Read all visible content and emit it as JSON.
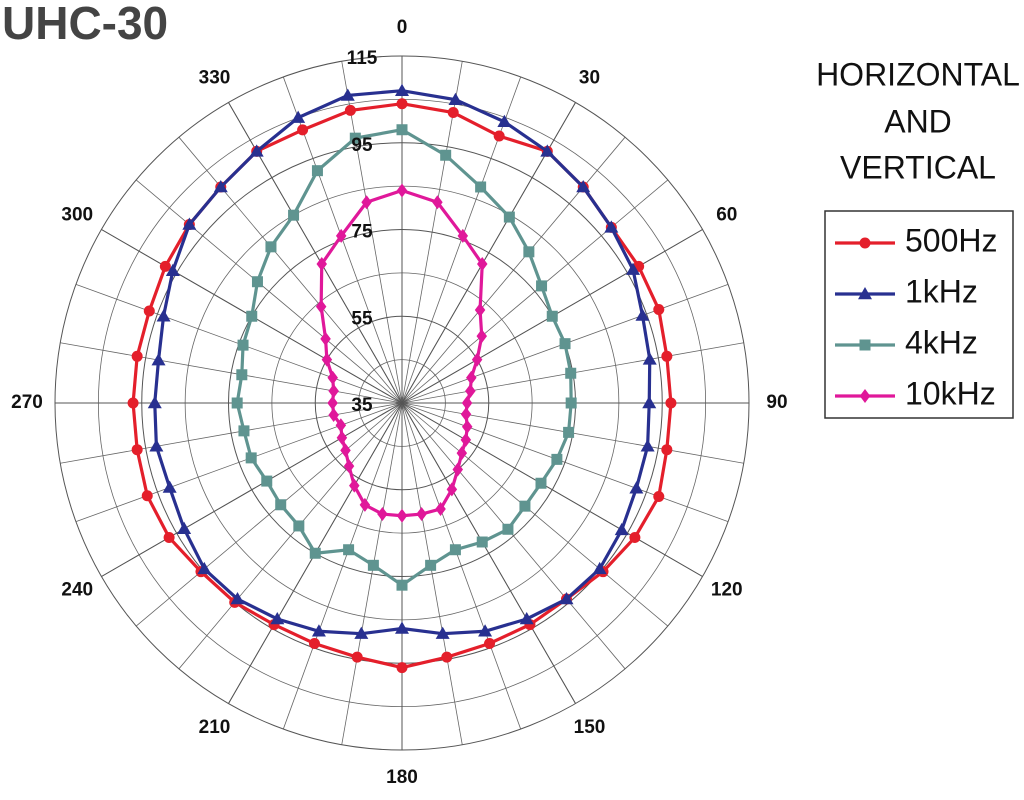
{
  "chart_data": {
    "type": "polar",
    "title": "UHC-30",
    "annotation": [
      "HORIZONTAL",
      "AND",
      "VERTICAL"
    ],
    "theta": [
      0,
      10,
      20,
      30,
      40,
      50,
      60,
      70,
      80,
      90,
      100,
      110,
      120,
      130,
      140,
      150,
      160,
      170,
      180,
      190,
      200,
      210,
      220,
      230,
      240,
      250,
      260,
      270,
      280,
      290,
      300,
      310,
      320,
      330,
      340,
      350
    ],
    "thetaticks": [
      0,
      30,
      60,
      90,
      120,
      150,
      180,
      210,
      240,
      270,
      300,
      330
    ],
    "rlim": [
      35,
      115
    ],
    "rticks": [
      35,
      55,
      75,
      95,
      115
    ],
    "grid": true,
    "legend": "right",
    "series": [
      {
        "name": "500Hz",
        "color": "#e41f2b",
        "marker": "circle",
        "values": [
          104,
          103,
          100.5,
          102,
          100,
          98,
          98,
          98,
          97,
          97,
          97,
          98,
          97,
          95.5,
          94,
          94,
          94,
          94.5,
          96,
          94.5,
          94,
          94,
          95,
          95.5,
          97,
          97.5,
          97,
          97,
          97,
          97,
          98,
          99,
          100,
          102,
          102,
          103.5
        ]
      },
      {
        "name": "1kHz",
        "color": "#283090",
        "marker": "triangle",
        "values": [
          107,
          106,
          104,
          102,
          100,
          98,
          96.5,
          94,
          93,
          92,
          92.5,
          92.5,
          93.5,
          94.5,
          94,
          92.5,
          91,
          89,
          87,
          89,
          91,
          92.5,
          94,
          94.5,
          93,
          92,
          92.5,
          92,
          92,
          93.5,
          96,
          99,
          100,
          102,
          105,
          107
        ]
      },
      {
        "name": "4kHz",
        "color": "#5f9490",
        "marker": "square",
        "values": [
          98,
          93,
          88,
          84.5,
          80.5,
          77,
          75,
          75,
          74.5,
          74,
          74,
          73,
          72,
          72,
          73,
          72,
          71,
          73,
          77,
          73,
          71,
          75,
          72,
          71.5,
          71,
          72,
          72,
          73,
          72.5,
          74,
          75,
          78.5,
          82,
          85,
          92,
          97
        ]
      },
      {
        "name": "10kHz",
        "color": "#e0189a",
        "marker": "diamond",
        "values": [
          84,
          82,
          76,
          72,
          63,
          59,
          55,
          52,
          51,
          50,
          50,
          51,
          52,
          53,
          55,
          58,
          61,
          61,
          61,
          61,
          60,
          57,
          54,
          52,
          51,
          50,
          51,
          51,
          51,
          52,
          55,
          58,
          64,
          72,
          76,
          82
        ]
      }
    ]
  }
}
